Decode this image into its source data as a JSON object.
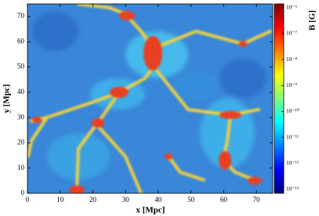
{
  "chart_data": {
    "type": "heatmap",
    "xlabel": "x [Mpc]",
    "ylabel": "y [Mpc]",
    "xlim": [
      0,
      75
    ],
    "xticks": [
      0,
      10,
      20,
      30,
      40,
      50,
      60,
      70
    ],
    "ylim": [
      0,
      75
    ],
    "yticks": [
      0,
      10,
      20,
      30,
      40,
      50,
      60,
      70
    ],
    "colorbar_label": "B [G]",
    "colorbar_scale": "log",
    "clim": [
      7e-14,
      1.4e-06
    ],
    "colorbar_ticks": [
      {
        "value": 1e-13,
        "label": "10⁻¹³"
      },
      {
        "value": 1e-12,
        "label": "10⁻¹²"
      },
      {
        "value": 1e-11,
        "label": "10⁻¹¹"
      },
      {
        "value": 1e-10,
        "label": "10⁻¹⁰"
      },
      {
        "value": 1e-09,
        "label": "10⁻⁹"
      },
      {
        "value": 1e-08,
        "label": "10⁻⁸"
      },
      {
        "value": 1e-07,
        "label": "10⁻⁷"
      },
      {
        "value": 1e-06,
        "label": "10⁻⁶"
      }
    ],
    "colormap": [
      "#00007f",
      "#0000ff",
      "#007fff",
      "#00ffff",
      "#7fff7f",
      "#ffff00",
      "#ff7f00",
      "#ff0000",
      "#7f0000"
    ]
  }
}
